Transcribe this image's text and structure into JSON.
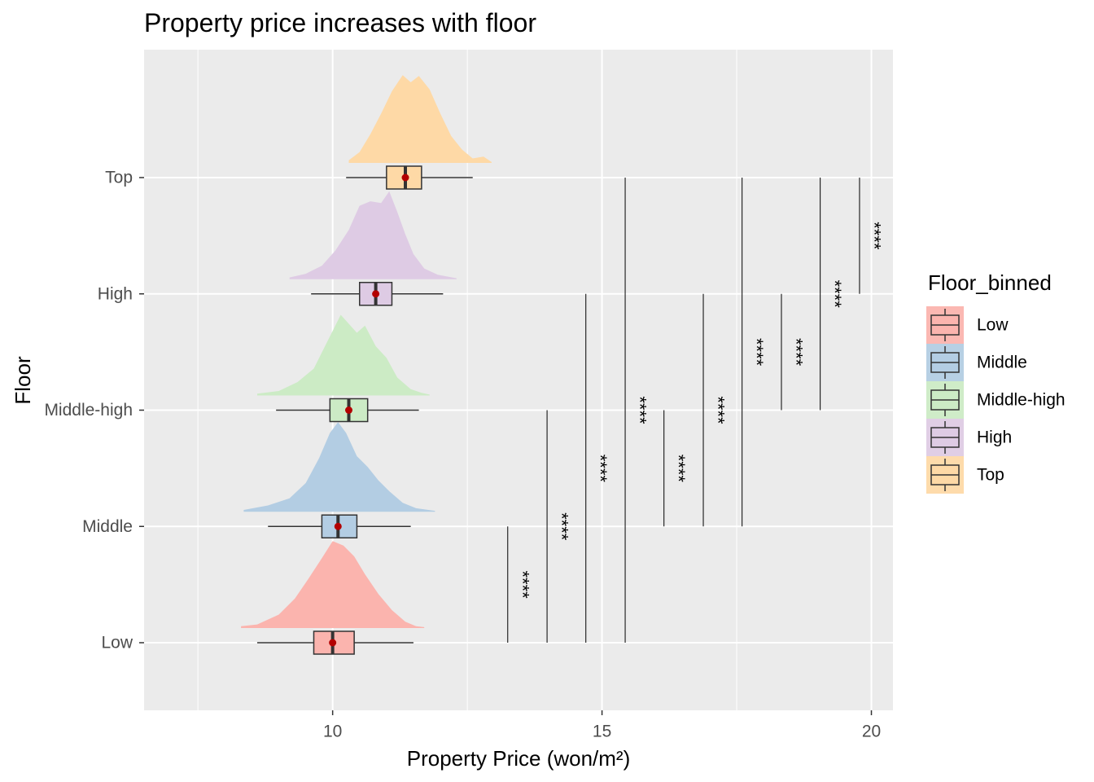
{
  "chart_data": {
    "type": "raincloud",
    "title": "Property price increases with floor",
    "xlabel": "Property Price (won/m²)",
    "ylabel": "Floor",
    "xlim": [
      6.5,
      20.4
    ],
    "x_ticks": [
      10,
      15,
      20
    ],
    "categories": [
      "Low",
      "Middle",
      "Middle-high",
      "High",
      "Top"
    ],
    "colors": [
      "#FBB4AE",
      "#B3CDE3",
      "#CCEBC5",
      "#DECBE4",
      "#FED9A6"
    ],
    "mean_color": "#B30000",
    "grid": true,
    "legend": {
      "title": "Floor_binned",
      "position": "right",
      "entries": [
        "Low",
        "Middle",
        "Middle-high",
        "High",
        "Top"
      ]
    },
    "boxplots": [
      {
        "name": "Low",
        "whisker_low": 8.6,
        "q1": 9.65,
        "median": 10.0,
        "q3": 10.4,
        "whisker_high": 11.5,
        "mean": 10.0
      },
      {
        "name": "Middle",
        "whisker_low": 8.8,
        "q1": 9.8,
        "median": 10.1,
        "q3": 10.45,
        "whisker_high": 11.45,
        "mean": 10.1
      },
      {
        "name": "Middle-high",
        "whisker_low": 8.95,
        "q1": 9.95,
        "median": 10.3,
        "q3": 10.65,
        "whisker_high": 11.6,
        "mean": 10.3
      },
      {
        "name": "High",
        "whisker_low": 9.6,
        "q1": 10.5,
        "median": 10.8,
        "q3": 11.1,
        "whisker_high": 12.05,
        "mean": 10.8
      },
      {
        "name": "Top",
        "whisker_low": 10.25,
        "q1": 11.0,
        "median": 11.35,
        "q3": 11.65,
        "whisker_high": 12.6,
        "mean": 11.35
      }
    ],
    "densities": [
      {
        "name": "Low",
        "x": [
          8.3,
          8.6,
          9.0,
          9.3,
          9.55,
          9.8,
          10.0,
          10.2,
          10.4,
          10.6,
          10.85,
          11.1,
          11.35,
          11.55,
          11.7
        ],
        "y": [
          0.02,
          0.04,
          0.15,
          0.33,
          0.55,
          0.78,
          0.97,
          0.92,
          0.8,
          0.6,
          0.38,
          0.2,
          0.07,
          0.02,
          0.01
        ]
      },
      {
        "name": "Middle",
        "x": [
          8.35,
          8.8,
          9.2,
          9.5,
          9.75,
          9.95,
          10.1,
          10.25,
          10.45,
          10.65,
          10.85,
          11.05,
          11.3,
          11.55,
          11.9
        ],
        "y": [
          0.02,
          0.07,
          0.15,
          0.32,
          0.6,
          0.88,
          1.0,
          0.88,
          0.62,
          0.5,
          0.35,
          0.23,
          0.1,
          0.04,
          0.01
        ]
      },
      {
        "name": "Middle-high",
        "x": [
          8.6,
          9.0,
          9.35,
          9.65,
          9.9,
          10.15,
          10.3,
          10.45,
          10.6,
          10.8,
          11.0,
          11.2,
          11.45,
          11.65,
          11.8
        ],
        "y": [
          0.02,
          0.05,
          0.15,
          0.3,
          0.6,
          0.9,
          0.8,
          0.7,
          0.78,
          0.55,
          0.42,
          0.2,
          0.07,
          0.03,
          0.01
        ]
      },
      {
        "name": "High",
        "x": [
          9.2,
          9.5,
          9.8,
          10.05,
          10.3,
          10.5,
          10.7,
          10.9,
          11.05,
          11.2,
          11.35,
          11.5,
          11.7,
          11.95,
          12.3
        ],
        "y": [
          0.02,
          0.06,
          0.15,
          0.32,
          0.55,
          0.82,
          0.87,
          0.85,
          0.98,
          0.75,
          0.5,
          0.28,
          0.12,
          0.05,
          0.01
        ]
      },
      {
        "name": "Top",
        "x": [
          10.3,
          10.5,
          10.7,
          10.9,
          11.1,
          11.3,
          11.45,
          11.6,
          11.8,
          12.0,
          12.2,
          12.4,
          12.6,
          12.8,
          12.95
        ],
        "y": [
          0.03,
          0.12,
          0.32,
          0.55,
          0.8,
          0.98,
          0.9,
          0.97,
          0.82,
          0.55,
          0.3,
          0.15,
          0.05,
          0.07,
          0.01
        ]
      }
    ],
    "comparisons": [
      {
        "group1": "Low",
        "group2": "Middle",
        "label": "****",
        "x": 13.25
      },
      {
        "group1": "Low",
        "group2": "Middle-high",
        "label": "****",
        "x": 13.98
      },
      {
        "group1": "Low",
        "group2": "High",
        "label": "****",
        "x": 14.7
      },
      {
        "group1": "Low",
        "group2": "Top",
        "label": "****",
        "x": 15.43
      },
      {
        "group1": "Middle",
        "group2": "Middle-high",
        "label": "****",
        "x": 16.15
      },
      {
        "group1": "Middle",
        "group2": "High",
        "label": "****",
        "x": 16.88
      },
      {
        "group1": "Middle",
        "group2": "Top",
        "label": "****",
        "x": 17.6
      },
      {
        "group1": "Middle-high",
        "group2": "High",
        "label": "****",
        "x": 18.33
      },
      {
        "group1": "Middle-high",
        "group2": "Top",
        "label": "****",
        "x": 19.05
      },
      {
        "group1": "High",
        "group2": "Top",
        "label": "****",
        "x": 19.78
      }
    ]
  }
}
